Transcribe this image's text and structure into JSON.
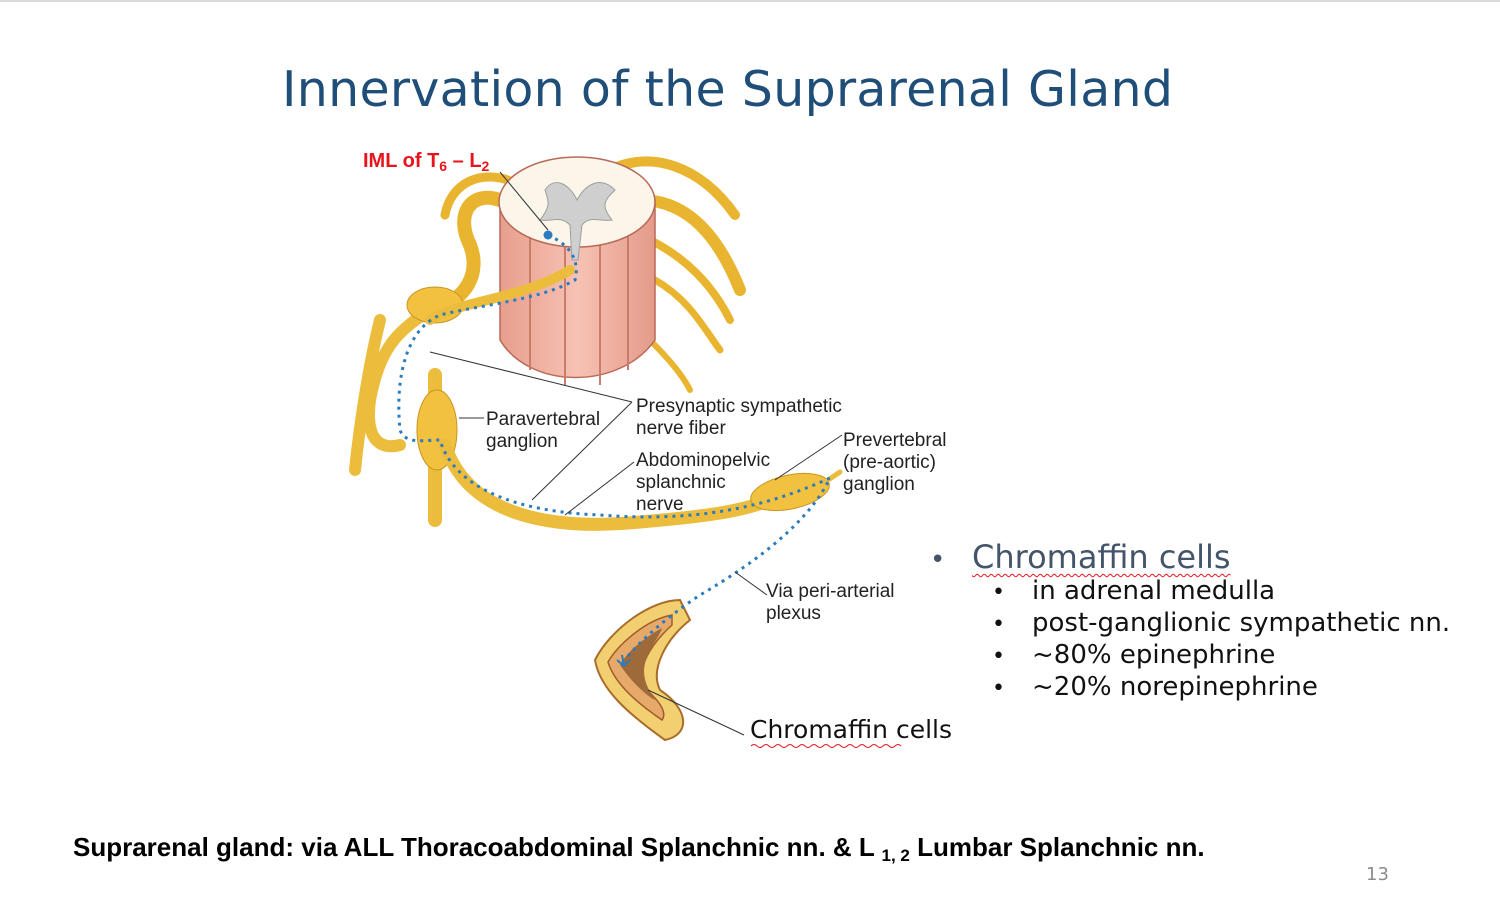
{
  "slide": {
    "title": "Innervation of the Suprarenal Gland",
    "page_number": "13"
  },
  "figure": {
    "iml_label": {
      "prefix": "IML of T",
      "sub1": "6",
      "dash": " – L",
      "sub2": "2"
    },
    "labels": {
      "paravertebral_1": "Paravertebral",
      "paravertebral_2": "ganglion",
      "presynaptic_1": "Presynaptic sympathetic",
      "presynaptic_2": "nerve fiber",
      "abdominopelvic_1": "Abdominopelvic",
      "abdominopelvic_2": "splanchnic",
      "abdominopelvic_3": "nerve",
      "prevertebral_1": "Prevertebral",
      "prevertebral_2": "(pre-aortic)",
      "prevertebral_3": "ganglion",
      "periarterial_1": "Via peri-arterial",
      "periarterial_2": "plexus",
      "chromaffin": "Chromaffin cells"
    }
  },
  "bullets": {
    "main": "Chromaffin cells",
    "items": [
      "in adrenal medulla",
      "post-ganglionic sympathetic nn.",
      "~80% epinephrine",
      "~20% norepinephrine"
    ]
  },
  "footer": {
    "part1": "Suprarenal gland: via ALL Thoracoabdominal Splanchnic nn. & L ",
    "sub": "1, 2",
    "part2": " Lumbar Splanchnic nn."
  },
  "colors": {
    "title": "#1f4e79",
    "iml_label": "#e8141b",
    "nerve": "#f4c542",
    "spinal_cord": "#f2b5a5",
    "dotted_path": "#2a7bbf"
  }
}
